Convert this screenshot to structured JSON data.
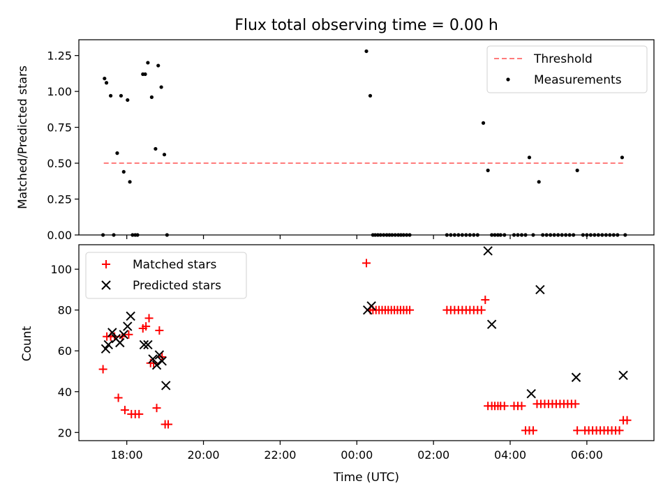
{
  "chart_data": [
    {
      "type": "scatter",
      "title": "Flux total observing time = 0.00 h",
      "xlabel": "",
      "ylabel": "Matched/Predicted stars",
      "ylim": [
        0,
        1.36
      ],
      "yticks": [
        "0.00",
        "0.25",
        "0.50",
        "0.75",
        "1.00",
        "1.25"
      ],
      "x_range_hours": [
        16.75,
        31.75
      ],
      "legend_position": "top-right",
      "threshold": {
        "name": "Threshold",
        "value": 0.5,
        "x": [
          17.4,
          31.0
        ],
        "color": "#ff7b7b"
      },
      "series": [
        {
          "name": "Measurements",
          "color": "#000000",
          "x": [
            17.38,
            17.42,
            17.47,
            17.58,
            17.66,
            17.75,
            17.85,
            17.92,
            18.02,
            18.08,
            18.15,
            18.22,
            18.28,
            18.42,
            18.48,
            18.55,
            18.65,
            18.75,
            18.82,
            18.9,
            18.98,
            19.05,
            24.25,
            24.35,
            24.42,
            24.48,
            24.55,
            24.62,
            24.7,
            24.78,
            24.85,
            24.92,
            25.0,
            25.08,
            25.15,
            25.22,
            25.3,
            25.38,
            26.35,
            26.45,
            26.55,
            26.65,
            26.75,
            26.85,
            26.95,
            27.05,
            27.15,
            27.3,
            27.42,
            27.52,
            27.6,
            27.68,
            27.75,
            27.85,
            28.1,
            28.2,
            28.3,
            28.4,
            28.5,
            28.6,
            28.75,
            28.85,
            28.95,
            29.05,
            29.15,
            29.25,
            29.35,
            29.45,
            29.55,
            29.65,
            29.75,
            29.9,
            30.0,
            30.1,
            30.2,
            30.3,
            30.4,
            30.5,
            30.6,
            30.7,
            30.8,
            30.92,
            31.0
          ],
          "y": [
            0.0,
            1.09,
            1.06,
            0.97,
            0.0,
            0.57,
            0.97,
            0.44,
            0.94,
            0.37,
            0.0,
            0.0,
            0.0,
            1.12,
            1.12,
            1.2,
            0.96,
            0.6,
            1.18,
            1.03,
            0.56,
            0.0,
            1.28,
            0.97,
            0.0,
            0.0,
            0.0,
            0.0,
            0.0,
            0.0,
            0.0,
            0.0,
            0.0,
            0.0,
            0.0,
            0.0,
            0.0,
            0.0,
            0.0,
            0.0,
            0.0,
            0.0,
            0.0,
            0.0,
            0.0,
            0.0,
            0.0,
            0.78,
            0.45,
            0.0,
            0.0,
            0.0,
            0.0,
            0.0,
            0.0,
            0.0,
            0.0,
            0.0,
            0.54,
            0.0,
            0.37,
            0.0,
            0.0,
            0.0,
            0.0,
            0.0,
            0.0,
            0.0,
            0.0,
            0.0,
            0.45,
            0.0,
            0.0,
            0.0,
            0.0,
            0.0,
            0.0,
            0.0,
            0.0,
            0.0,
            0.0,
            0.54,
            0.0
          ]
        }
      ]
    },
    {
      "type": "scatter",
      "title": "",
      "xlabel": "Time (UTC)",
      "ylabel": "Count",
      "ylim": [
        16,
        112
      ],
      "yticks": [
        "20",
        "40",
        "60",
        "80",
        "100"
      ],
      "x_range_hours": [
        16.75,
        31.75
      ],
      "xticks": [
        "18:00",
        "20:00",
        "22:00",
        "00:00",
        "02:00",
        "04:00",
        "06:00"
      ],
      "legend_position": "top-left",
      "series": [
        {
          "name": "Matched stars",
          "marker": "plus",
          "color": "#ff0000",
          "x": [
            17.38,
            17.48,
            17.58,
            17.68,
            17.78,
            17.88,
            17.95,
            18.05,
            18.12,
            18.22,
            18.32,
            18.42,
            18.5,
            18.58,
            18.62,
            18.7,
            18.78,
            18.85,
            18.92,
            19.0,
            19.08,
            24.25,
            24.35,
            24.42,
            24.5,
            24.58,
            24.66,
            24.74,
            24.82,
            24.9,
            24.98,
            25.06,
            25.14,
            25.22,
            25.3,
            25.38,
            26.35,
            26.45,
            26.55,
            26.65,
            26.75,
            26.85,
            26.95,
            27.05,
            27.15,
            27.25,
            27.35,
            27.42,
            27.52,
            27.6,
            27.68,
            27.75,
            27.85,
            28.1,
            28.2,
            28.3,
            28.4,
            28.5,
            28.6,
            28.7,
            28.8,
            28.9,
            29.0,
            29.1,
            29.2,
            29.3,
            29.4,
            29.5,
            29.6,
            29.7,
            29.75,
            29.95,
            30.05,
            30.15,
            30.25,
            30.35,
            30.45,
            30.55,
            30.65,
            30.75,
            30.85,
            30.95,
            31.05
          ],
          "y": [
            51,
            67,
            67,
            67,
            37,
            67,
            31,
            68,
            29,
            29,
            29,
            71,
            72,
            76,
            54,
            54,
            32,
            70,
            57,
            24,
            24,
            103,
            80,
            80,
            80,
            80,
            80,
            80,
            80,
            80,
            80,
            80,
            80,
            80,
            80,
            80,
            80,
            80,
            80,
            80,
            80,
            80,
            80,
            80,
            80,
            80,
            85,
            33,
            33,
            33,
            33,
            33,
            33,
            33,
            33,
            33,
            21,
            21,
            21,
            34,
            34,
            34,
            34,
            34,
            34,
            34,
            34,
            34,
            34,
            34,
            21,
            21,
            21,
            21,
            21,
            21,
            21,
            21,
            21,
            21,
            21,
            26,
            26
          ]
        },
        {
          "name": "Predicted stars",
          "marker": "x",
          "color": "#000000",
          "x": [
            17.45,
            17.52,
            17.62,
            17.72,
            17.82,
            17.92,
            18.02,
            18.1,
            18.45,
            18.55,
            18.68,
            18.78,
            18.85,
            18.92,
            19.02,
            24.28,
            24.38,
            27.42,
            27.52,
            28.55,
            28.78,
            29.72,
            30.95
          ],
          "y": [
            61,
            63,
            69,
            66,
            64,
            68,
            72,
            77,
            63,
            63,
            56,
            53,
            58,
            55,
            43,
            80,
            82,
            109,
            73,
            39,
            90,
            47,
            48
          ]
        }
      ]
    }
  ]
}
